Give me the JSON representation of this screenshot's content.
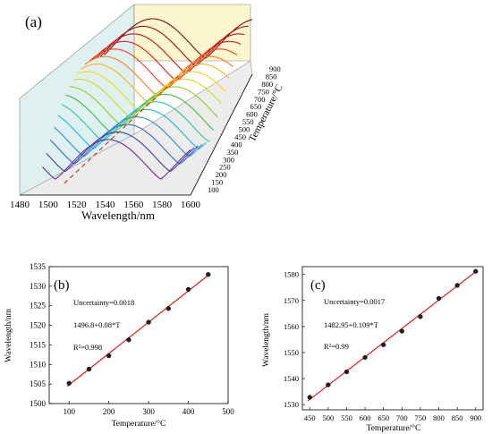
{
  "chart_data": [
    {
      "type": "line",
      "panel_label": "(a)",
      "xlabel": "Wavelength/nm",
      "zlabel": "Temperature/°C",
      "x_ticks": [
        1480,
        1500,
        1520,
        1540,
        1560,
        1580,
        1600
      ],
      "z_ticks": [
        100,
        150,
        200,
        250,
        300,
        350,
        400,
        450,
        500,
        550,
        600,
        650,
        700,
        750,
        800,
        850,
        900
      ],
      "series_temperatures": [
        100,
        150,
        200,
        250,
        300,
        350,
        400,
        450,
        500,
        550,
        600,
        650,
        700,
        750,
        800,
        850,
        900
      ],
      "dip_wavelengths_approx": [
        1505,
        1509,
        1513,
        1517,
        1521,
        1525,
        1529,
        1533,
        1537,
        1540,
        1544,
        1547,
        1551,
        1555,
        1559,
        1563,
        1567
      ],
      "colors": [
        "#6a2d91",
        "#4b3aa8",
        "#3366cc",
        "#2d8bd6",
        "#1fb6d4",
        "#2ec5a0",
        "#3fbf3f",
        "#8fcf1f",
        "#d8d81c",
        "#ffd21c",
        "#ffb01c",
        "#ff7a1c",
        "#ff3c1c",
        "#e81c1c",
        "#c41414",
        "#a01010",
        "#7a1010"
      ]
    },
    {
      "type": "scatter",
      "panel_label": "(b)",
      "xlabel": "Temperature/°C",
      "ylabel": "Wavelength/nm",
      "xlim": [
        50,
        500
      ],
      "ylim": [
        1500,
        1535
      ],
      "x_ticks": [
        100,
        200,
        300,
        400,
        500
      ],
      "y_ticks": [
        1500,
        1505,
        1510,
        1515,
        1520,
        1525,
        1530,
        1535
      ],
      "x": [
        100,
        150,
        200,
        250,
        300,
        350,
        400,
        450
      ],
      "y": [
        1505.2,
        1508.8,
        1512.2,
        1516.3,
        1520.8,
        1524.3,
        1529.2,
        1533.0
      ],
      "fit": {
        "intercept": 1496.8,
        "slope": 0.08
      },
      "annotations": [
        "Uncertainty=0.0018",
        "1496.8+0.08*T",
        "R²=0.998"
      ]
    },
    {
      "type": "scatter",
      "panel_label": "(c)",
      "xlabel": "Temperature/°C",
      "ylabel": "Wavelength/nm",
      "xlim": [
        430,
        920
      ],
      "ylim": [
        1528,
        1583
      ],
      "x_ticks": [
        450,
        500,
        550,
        600,
        650,
        700,
        750,
        800,
        850,
        900
      ],
      "y_ticks": [
        1530,
        1540,
        1550,
        1560,
        1570,
        1580
      ],
      "x": [
        450,
        500,
        550,
        600,
        650,
        700,
        750,
        800,
        850,
        900
      ],
      "y": [
        1532.8,
        1537.6,
        1542.6,
        1548.1,
        1553.0,
        1558.2,
        1563.8,
        1570.8,
        1575.8,
        1581.2
      ],
      "fit": {
        "intercept": 1482.95,
        "slope": 0.109
      },
      "annotations": [
        "Uncertainty=0.0017",
        "1482.95+0.109*T",
        "R²=0.99"
      ]
    }
  ]
}
